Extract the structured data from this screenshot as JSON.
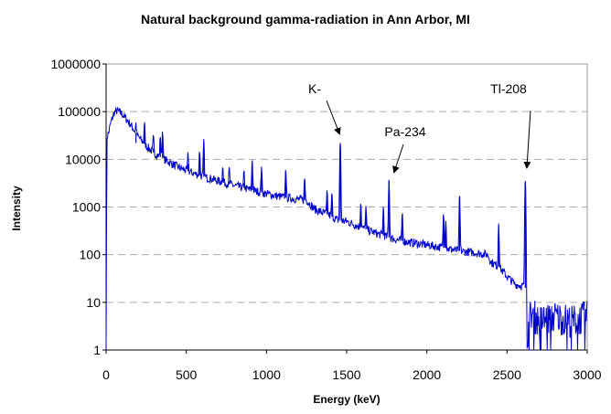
{
  "chart_data": {
    "type": "line",
    "title": "Natural background gamma-radiation in Ann Arbor, MI",
    "xlabel": "Energy (keV)",
    "ylabel": "Intensity",
    "xlim": [
      0,
      3000
    ],
    "ylim": [
      1,
      1000000
    ],
    "yscale": "log",
    "x_ticks": [
      0,
      500,
      1000,
      1500,
      2000,
      2500,
      3000
    ],
    "y_ticks": [
      1,
      10,
      100,
      1000,
      10000,
      100000,
      1000000
    ],
    "x_tick_labels": [
      "0",
      "500",
      "1000",
      "1500",
      "2000",
      "2500",
      "3000"
    ],
    "y_tick_labels": [
      "1",
      "10",
      "100",
      "1000",
      "10000",
      "100000",
      "1000000"
    ],
    "grid": "horizontal dashed",
    "legend": "none",
    "line_color": "#0000cc",
    "series": [
      {
        "continuum": [
          [
            0,
            1
          ],
          [
            5,
            30000
          ],
          [
            15,
            35000
          ],
          [
            30,
            60000
          ],
          [
            50,
            95000
          ],
          [
            70,
            105000
          ],
          [
            100,
            90000
          ],
          [
            150,
            55000
          ],
          [
            200,
            30000
          ],
          [
            250,
            19000
          ],
          [
            300,
            13500
          ],
          [
            350,
            10500
          ],
          [
            400,
            8500
          ],
          [
            450,
            6800
          ],
          [
            500,
            5800
          ],
          [
            600,
            4400
          ],
          [
            700,
            3500
          ],
          [
            800,
            2800
          ],
          [
            900,
            2300
          ],
          [
            1000,
            1900
          ],
          [
            1100,
            1600
          ],
          [
            1200,
            1450
          ],
          [
            1250,
            1400
          ],
          [
            1300,
            900
          ],
          [
            1400,
            650
          ],
          [
            1450,
            520
          ],
          [
            1500,
            500
          ],
          [
            1600,
            360
          ],
          [
            1700,
            270
          ],
          [
            1800,
            210
          ],
          [
            1900,
            180
          ],
          [
            2000,
            160
          ],
          [
            2100,
            140
          ],
          [
            2200,
            120
          ],
          [
            2300,
            110
          ],
          [
            2380,
            100
          ],
          [
            2400,
            70
          ],
          [
            2450,
            55
          ],
          [
            2500,
            35
          ],
          [
            2550,
            24
          ],
          [
            2600,
            22
          ],
          [
            2614,
            20
          ],
          [
            2625,
            2
          ],
          [
            2650,
            6
          ],
          [
            2700,
            4
          ],
          [
            2800,
            5
          ],
          [
            2900,
            4
          ],
          [
            3000,
            5
          ]
        ],
        "peaks": [
          {
            "energy": 186,
            "height": 22000
          },
          {
            "energy": 239,
            "height": 40000
          },
          {
            "energy": 295,
            "height": 17000
          },
          {
            "energy": 338,
            "height": 20000
          },
          {
            "energy": 352,
            "height": 30000
          },
          {
            "energy": 511,
            "height": 8000
          },
          {
            "energy": 583,
            "height": 11000
          },
          {
            "energy": 609,
            "height": 22000
          },
          {
            "energy": 727,
            "height": 4000
          },
          {
            "energy": 768,
            "height": 3500
          },
          {
            "energy": 860,
            "height": 3200
          },
          {
            "energy": 911,
            "height": 8000
          },
          {
            "energy": 969,
            "height": 5200
          },
          {
            "energy": 1120,
            "height": 5000
          },
          {
            "energy": 1238,
            "height": 2800
          },
          {
            "energy": 1378,
            "height": 1500
          },
          {
            "energy": 1408,
            "height": 1400
          },
          {
            "energy": 1460,
            "height": 22000
          },
          {
            "energy": 1588,
            "height": 900
          },
          {
            "energy": 1620,
            "height": 700
          },
          {
            "energy": 1729,
            "height": 800
          },
          {
            "energy": 1764,
            "height": 3500
          },
          {
            "energy": 1847,
            "height": 600
          },
          {
            "energy": 2104,
            "height": 600
          },
          {
            "energy": 2118,
            "height": 400
          },
          {
            "energy": 2204,
            "height": 1700
          },
          {
            "energy": 2448,
            "height": 400
          },
          {
            "energy": 2614,
            "height": 3500
          }
        ]
      }
    ],
    "annotations": [
      {
        "text": "K-",
        "target_energy": 1460,
        "target_intensity": 22000
      },
      {
        "text": "Pa-234",
        "target_energy": 1764,
        "target_intensity": 3500
      },
      {
        "text": "Tl-208",
        "target_energy": 2614,
        "target_intensity": 3500
      }
    ]
  }
}
